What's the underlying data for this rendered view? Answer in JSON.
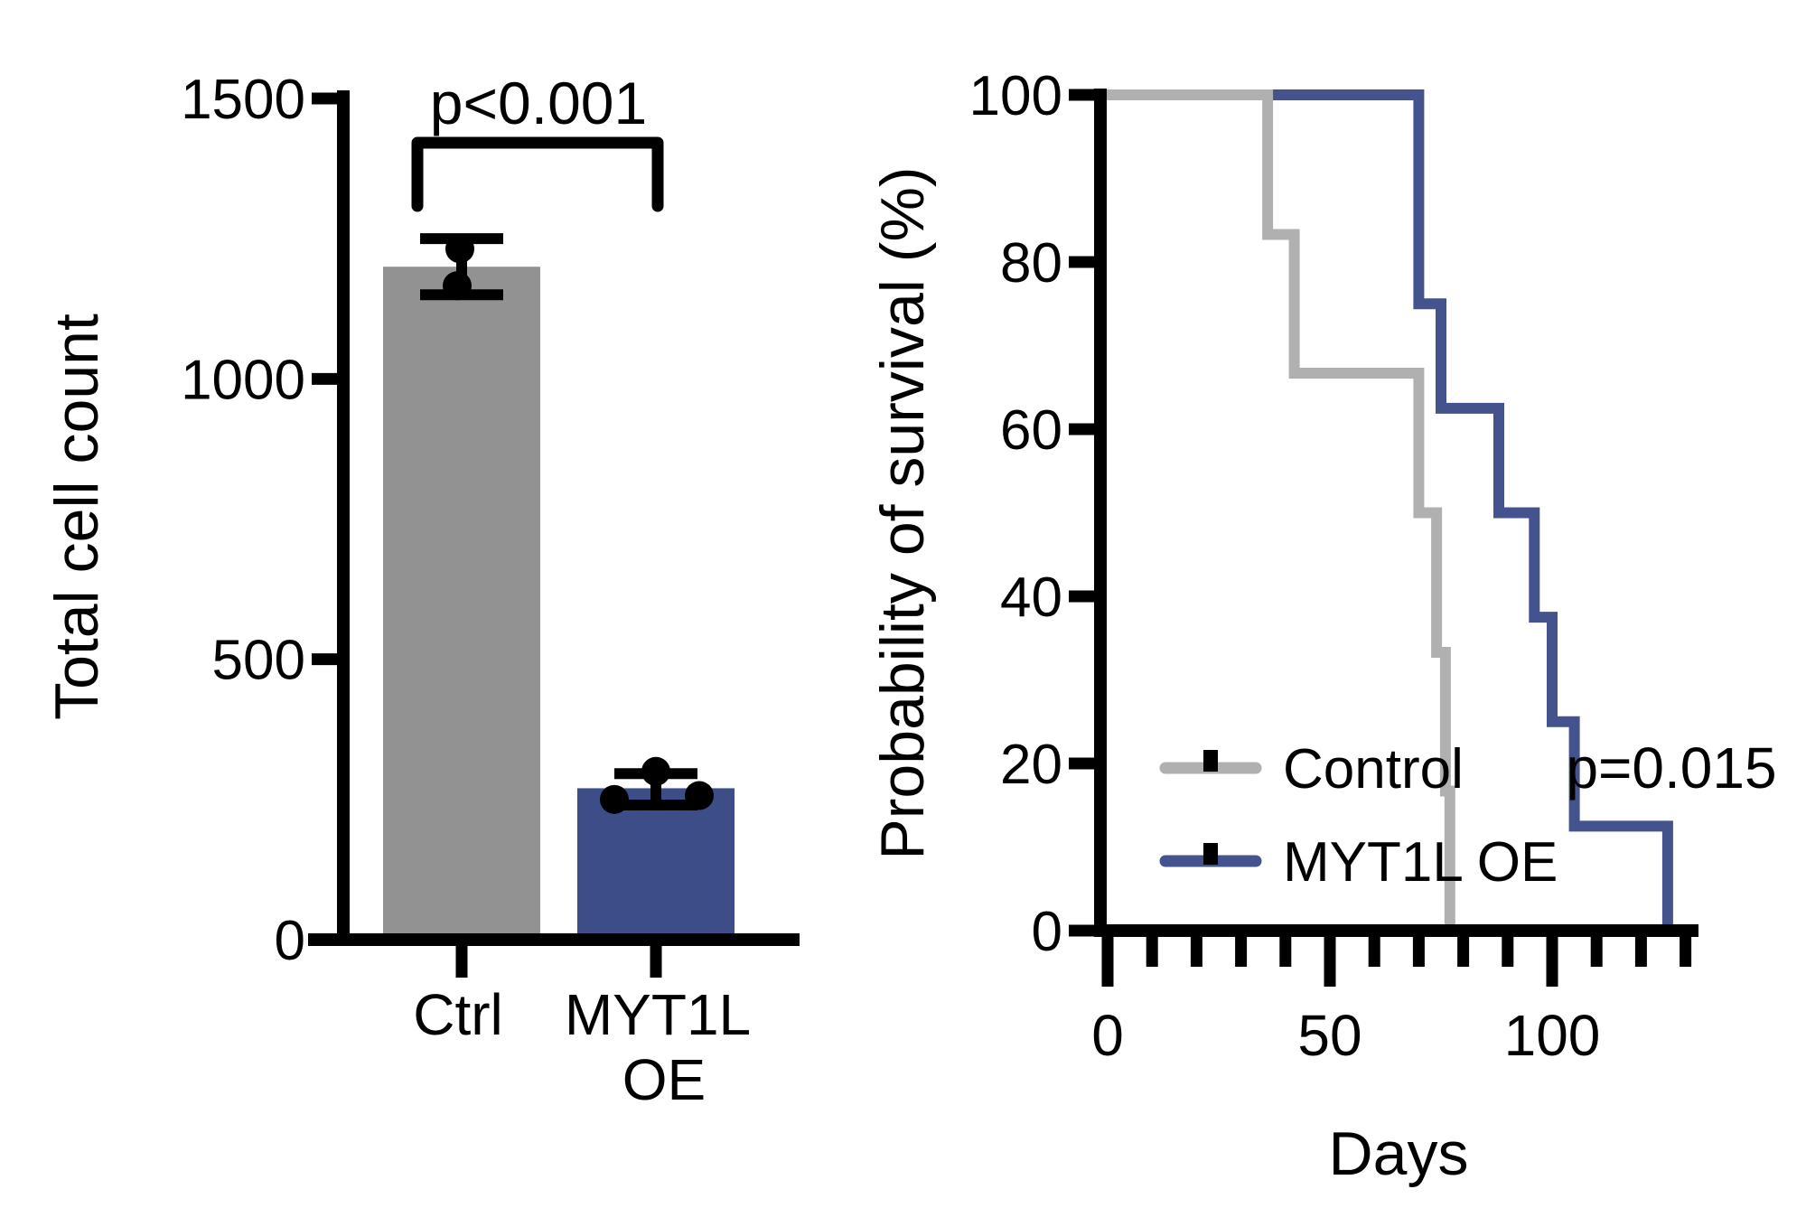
{
  "figure": {
    "background": "#ffffff",
    "panels": [
      "total-cell-count-bar-chart",
      "survival-curve-chart"
    ]
  },
  "colors": {
    "black": "#000000",
    "bar_gray": "#929292",
    "line_gray": "#b0b0b0",
    "bar_blue": "#3d4d88",
    "line_blue": "#44528e"
  },
  "chart_data": [
    {
      "type": "bar",
      "title": "",
      "xlabel": "",
      "ylabel": "Total cell count",
      "ylim": [
        0,
        1500
      ],
      "yticks": [
        0,
        500,
        1000,
        1500
      ],
      "grid": "off",
      "categories": [
        "Ctrl",
        "MYT1L OE"
      ],
      "category_lines": [
        [
          "Ctrl"
        ],
        [
          "MYT1L",
          "OE"
        ]
      ],
      "values": [
        1200,
        270
      ],
      "bar_colors": [
        "#929292",
        "#3d4d88"
      ],
      "error_bars": {
        "mean": [
          1200,
          268
        ],
        "sd": [
          50,
          28
        ]
      },
      "points": [
        [
          {
            "dx": -2,
            "v": 1232
          },
          {
            "dx": -5,
            "v": 1166
          }
        ],
        [
          {
            "dx": -46,
            "v": 250
          },
          {
            "dx": 0,
            "v": 300
          },
          {
            "dx": 48,
            "v": 257
          }
        ]
      ],
      "significance": {
        "label": "p<0.001",
        "between": [
          "Ctrl",
          "MYT1L OE"
        ]
      }
    },
    {
      "type": "line",
      "subtype": "kaplan-meier-step",
      "title": "",
      "xlabel": "Days",
      "ylabel": "Probability of survival (%)",
      "xlim": [
        0,
        133
      ],
      "ylim": [
        0,
        100
      ],
      "yticks": [
        0,
        20,
        40,
        60,
        80,
        100
      ],
      "xticks_major": [
        0,
        50,
        100
      ],
      "xtick_minor_interval": 10,
      "grid": "off",
      "legend_position": "inside-lower-left",
      "annotation": "p=0.015",
      "series": [
        {
          "name": "Control",
          "color": "#b0b0b0",
          "steps_day_percent": [
            [
              0,
              100
            ],
            [
              36,
              83.3
            ],
            [
              42,
              66.7
            ],
            [
              70,
              50
            ],
            [
              74,
              33.3
            ],
            [
              76,
              16.7
            ],
            [
              77,
              0
            ]
          ]
        },
        {
          "name": "MYT1L OE",
          "color": "#44528e",
          "steps_day_percent": [
            [
              0,
              100
            ],
            [
              70,
              75
            ],
            [
              75,
              62.5
            ],
            [
              88,
              50
            ],
            [
              96,
              37.5
            ],
            [
              100,
              25
            ],
            [
              105,
              12.5
            ],
            [
              126,
              0
            ]
          ]
        }
      ]
    }
  ]
}
